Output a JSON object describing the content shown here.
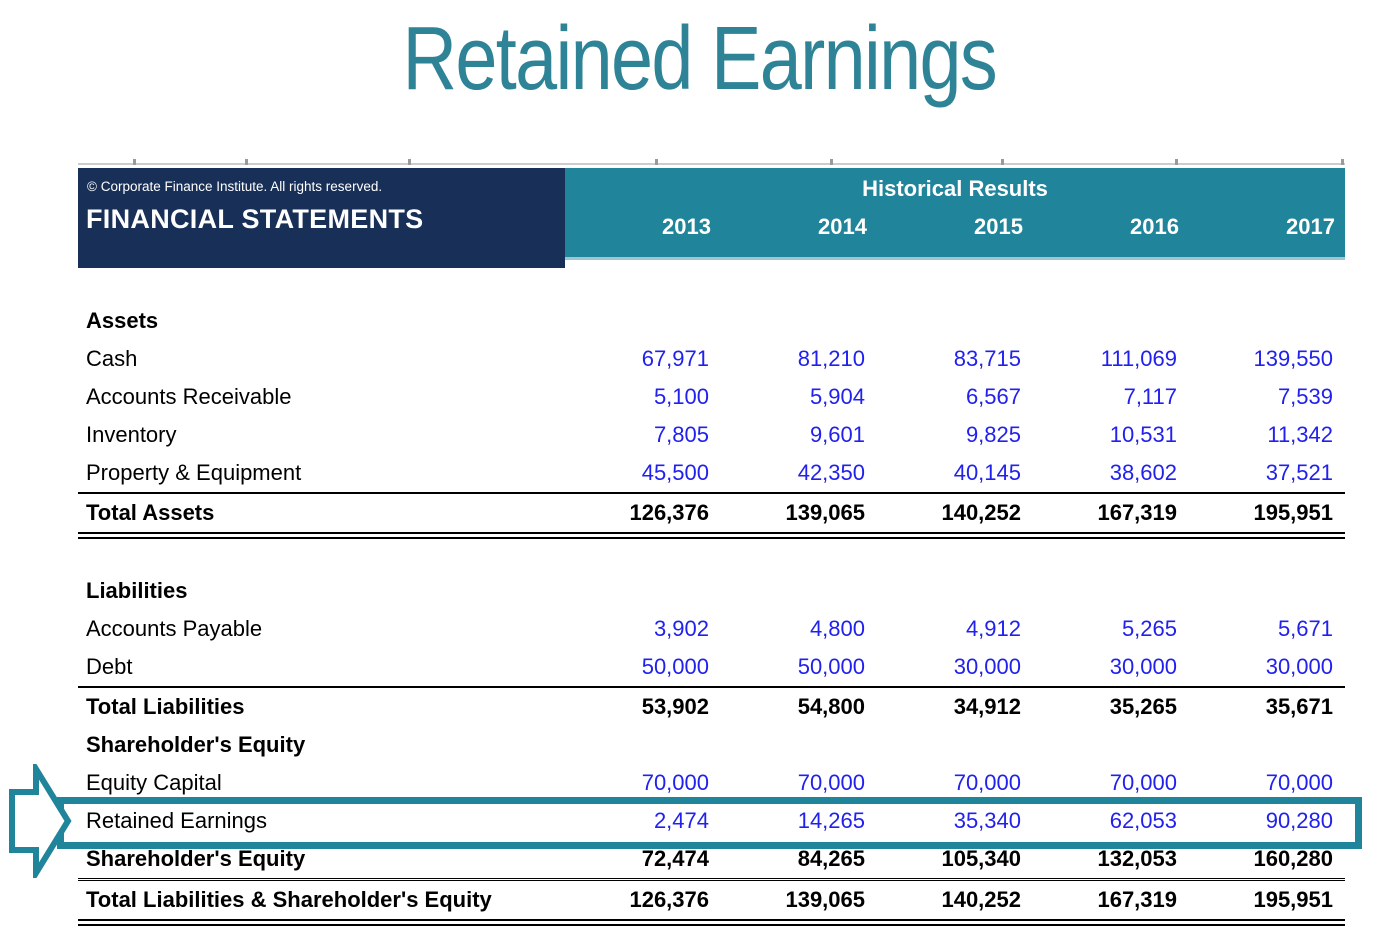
{
  "page": {
    "title": "Retained Earnings"
  },
  "colors": {
    "navy_header": "#182F58",
    "teal_header": "#20849A",
    "title_teal": "#2E8496",
    "value_blue": "#2121EE",
    "highlight_box": "#20849A"
  },
  "table": {
    "copyright": "© Corporate Finance Institute. All rights reserved.",
    "header_left": "FINANCIAL STATEMENTS",
    "header_group": "Historical Results",
    "years": [
      "2013",
      "2014",
      "2015",
      "2016",
      "2017"
    ],
    "rows": [
      {
        "label": "Assets",
        "style": "heading",
        "values": [
          "",
          "",
          "",
          "",
          ""
        ]
      },
      {
        "label": "Cash",
        "style": "data",
        "values": [
          "67,971",
          "81,210",
          "83,715",
          "111,069",
          "139,550"
        ]
      },
      {
        "label": "Accounts Receivable",
        "style": "data",
        "values": [
          "5,100",
          "5,904",
          "6,567",
          "7,117",
          "7,539"
        ]
      },
      {
        "label": "Inventory",
        "style": "data",
        "values": [
          "7,805",
          "9,601",
          "9,825",
          "10,531",
          "11,342"
        ]
      },
      {
        "label": "Property & Equipment",
        "style": "data",
        "values": [
          "45,500",
          "42,350",
          "40,145",
          "38,602",
          "37,521"
        ]
      },
      {
        "label": "Total Assets",
        "style": "total",
        "borders": "top-single bottom-double",
        "values": [
          "126,376",
          "139,065",
          "140,252",
          "167,319",
          "195,951"
        ]
      },
      {
        "label": "",
        "style": "spacer",
        "values": [
          "",
          "",
          "",
          "",
          ""
        ]
      },
      {
        "label": "Liabilities",
        "style": "heading",
        "values": [
          "",
          "",
          "",
          "",
          ""
        ]
      },
      {
        "label": "Accounts Payable",
        "style": "data",
        "values": [
          "3,902",
          "4,800",
          "4,912",
          "5,265",
          "5,671"
        ]
      },
      {
        "label": "Debt",
        "style": "data",
        "values": [
          "50,000",
          "50,000",
          "30,000",
          "30,000",
          "30,000"
        ]
      },
      {
        "label": "Total Liabilities",
        "style": "total",
        "borders": "top-single",
        "values": [
          "53,902",
          "54,800",
          "34,912",
          "35,265",
          "35,671"
        ]
      },
      {
        "label": "Shareholder's Equity",
        "style": "heading",
        "values": [
          "",
          "",
          "",
          "",
          ""
        ]
      },
      {
        "label": "Equity Capital",
        "style": "data",
        "values": [
          "70,000",
          "70,000",
          "70,000",
          "70,000",
          "70,000"
        ]
      },
      {
        "label": "Retained Earnings",
        "style": "data",
        "highlight": true,
        "values": [
          "2,474",
          "14,265",
          "35,340",
          "62,053",
          "90,280"
        ]
      },
      {
        "label": "Shareholder's Equity",
        "style": "total",
        "values": [
          "72,474",
          "84,265",
          "105,340",
          "132,053",
          "160,280"
        ]
      },
      {
        "label": "Total Liabilities & Shareholder's Equity",
        "style": "total",
        "borders": "top-thin-double bottom-double",
        "values": [
          "126,376",
          "139,065",
          "140,252",
          "167,319",
          "195,951"
        ]
      }
    ]
  }
}
